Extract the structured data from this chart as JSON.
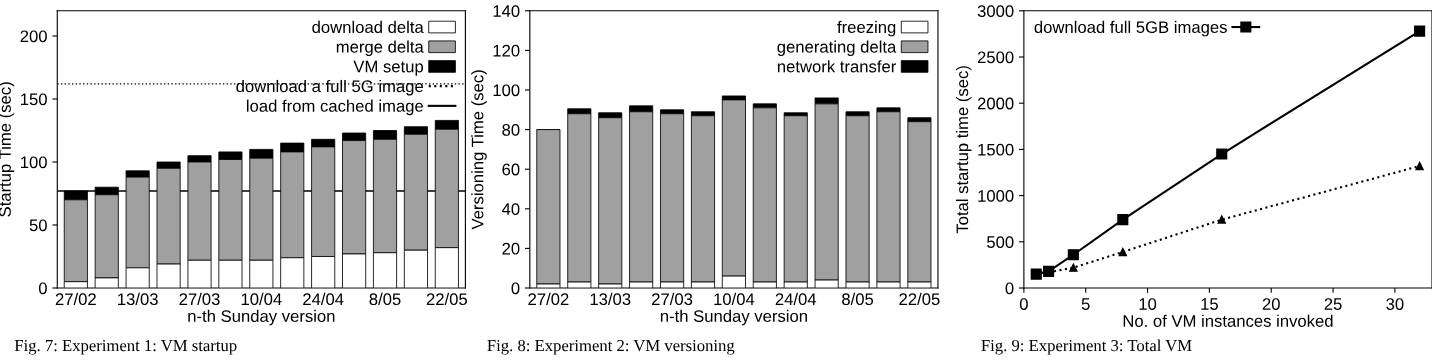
{
  "chart_data": [
    {
      "type": "bar",
      "stacked": true,
      "ylabel": "Startup Time (sec)",
      "xlabel": "n-th Sunday version",
      "categories": [
        "27/02",
        null,
        "13/03",
        null,
        "27/03",
        null,
        "10/04",
        null,
        "24/04",
        null,
        "8/05",
        null,
        "22/05"
      ],
      "series": [
        {
          "name": "download delta",
          "color": "#ffffff",
          "values": [
            5,
            8,
            16,
            19,
            22,
            22,
            22,
            24,
            25,
            27,
            28,
            30,
            32
          ]
        },
        {
          "name": "merge delta",
          "color": "#a0a0a0",
          "values": [
            65,
            66,
            72,
            76,
            78,
            80,
            81,
            84,
            87,
            90,
            90,
            92,
            94
          ]
        },
        {
          "name": "VM setup",
          "color": "#000000",
          "values": [
            7,
            6,
            5,
            5,
            5,
            6,
            7,
            7,
            6,
            6,
            7,
            6,
            7
          ]
        }
      ],
      "ref_lines": [
        {
          "axis": "y",
          "value": 162,
          "label": "download a full 5G image",
          "line_style": "dotted",
          "color": "#000000"
        },
        {
          "axis": "y",
          "value": 77,
          "label": "load from cached image",
          "line_style": "solid",
          "color": "#000000"
        }
      ],
      "ylim": [
        0,
        220
      ],
      "yticks": [
        0,
        50,
        100,
        150,
        200
      ],
      "legend": "top right",
      "annotations": [
        "Fig. 7: Experiment 1: VM startup"
      ]
    },
    {
      "type": "bar",
      "stacked": true,
      "ylabel": "Versioning Time (sec)",
      "xlabel": "n-th Sunday version",
      "categories": [
        "27/02",
        null,
        "13/03",
        null,
        "27/03",
        null,
        "10/04",
        null,
        "24/04",
        null,
        "8/05",
        null,
        "22/05"
      ],
      "series": [
        {
          "name": "freezing",
          "color": "#ffffff",
          "values": [
            2,
            3,
            2,
            3,
            3,
            3,
            6,
            3,
            3,
            4,
            3,
            3,
            3
          ]
        },
        {
          "name": "generating delta",
          "color": "#a0a0a0",
          "values": [
            78,
            85,
            84,
            86,
            85,
            84,
            89,
            88,
            84,
            89,
            84,
            86,
            81
          ]
        },
        {
          "name": "network transfer",
          "color": "#000000",
          "values": [
            0,
            2.5,
            2.5,
            3,
            2,
            2,
            2,
            2,
            1.5,
            3,
            2,
            2,
            2
          ]
        }
      ],
      "ylim": [
        0,
        140
      ],
      "yticks": [
        0,
        20,
        40,
        60,
        80,
        100,
        120,
        140
      ],
      "legend": "top right",
      "annotations": [
        "Fig. 8: Experiment 2: VM versioning"
      ]
    },
    {
      "type": "line",
      "ylabel": "Total startup time (sec)",
      "xlabel": "No. of VM instances invoked",
      "series": [
        {
          "name": "download full 5GB images",
          "color": "#000000",
          "x": [
            1,
            2,
            4,
            8,
            16,
            32
          ],
          "values": [
            150,
            180,
            360,
            740,
            1450,
            2780
          ],
          "marker": "square",
          "line_style": "solid"
        },
        {
          "color": "#000000",
          "x": [
            2,
            4,
            8,
            16,
            32
          ],
          "values": [
            170,
            220,
            390,
            740,
            1320
          ],
          "marker": "triangle",
          "line_style": "dotted"
        }
      ],
      "xlim": [
        0,
        33
      ],
      "xticks": [
        0,
        5,
        10,
        15,
        20,
        25,
        30
      ],
      "ylim": [
        0,
        3000
      ],
      "yticks": [
        0,
        500,
        1000,
        1500,
        2000,
        2500,
        3000
      ],
      "legend": "top left",
      "annotations": [
        "Fig. 9: Experiment 3: Total VM"
      ]
    }
  ]
}
